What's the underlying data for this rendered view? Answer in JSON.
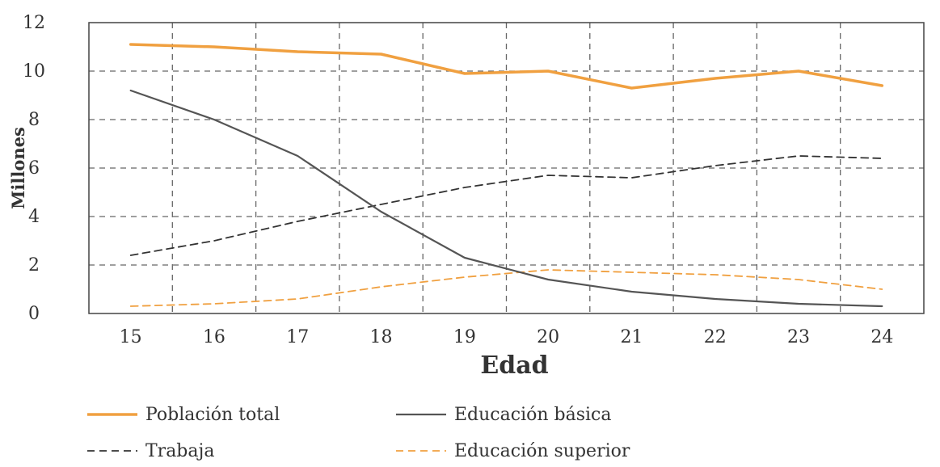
{
  "chart_data": {
    "type": "line",
    "xlabel": "Edad",
    "ylabel": "Millones",
    "x": [
      15,
      16,
      17,
      18,
      19,
      20,
      21,
      22,
      23,
      24
    ],
    "xlim": [
      14.5,
      24.5
    ],
    "ylim": [
      0,
      12
    ],
    "yticks": [
      0,
      2,
      4,
      6,
      8,
      10,
      12
    ],
    "grid": true,
    "legend_position": "bottom",
    "series": [
      {
        "name": "Población total",
        "values": [
          11.1,
          11.0,
          10.8,
          10.7,
          9.9,
          10.0,
          9.3,
          9.7,
          10.0,
          9.4
        ],
        "color": "#f0a040",
        "style": "solid"
      },
      {
        "name": "Educación básica",
        "values": [
          9.2,
          8.0,
          6.5,
          4.2,
          2.3,
          1.4,
          0.9,
          0.6,
          0.4,
          0.3
        ],
        "color": "#555555",
        "style": "solid"
      },
      {
        "name": "Trabaja",
        "values": [
          2.4,
          3.0,
          3.8,
          4.5,
          5.2,
          5.7,
          5.6,
          6.1,
          6.5,
          6.4
        ],
        "color": "#333333",
        "style": "dashed"
      },
      {
        "name": "Educación superior",
        "values": [
          0.3,
          0.4,
          0.6,
          1.1,
          1.5,
          1.8,
          1.7,
          1.6,
          1.4,
          1.0
        ],
        "color": "#f0a040",
        "style": "dashed"
      }
    ]
  }
}
